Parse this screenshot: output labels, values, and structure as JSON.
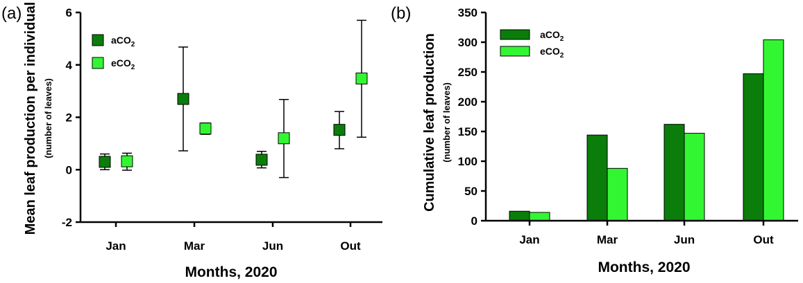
{
  "chart_data": [
    {
      "type": "scatter",
      "panel_label": "(a)",
      "xlabel": "Months, 2020",
      "ylabel": "Mean leaf production per individual",
      "ylabel_unit": "(number of leaves)",
      "categories": [
        "Jan",
        "Mar",
        "Jun",
        "Out"
      ],
      "ylim": [
        -2,
        6
      ],
      "yticks": [
        "-2",
        "0",
        "2",
        "4",
        "6"
      ],
      "series": [
        {
          "name": "aCO",
          "sub": "2",
          "color": "#0b7d0b",
          "values": [
            0.3,
            2.7,
            0.38,
            1.52
          ],
          "err_low": [
            0.0,
            0.72,
            0.07,
            0.8
          ],
          "err_high": [
            0.6,
            4.68,
            0.7,
            2.22
          ]
        },
        {
          "name": "eCO",
          "sub": "2",
          "color": "#33f633",
          "values": [
            0.32,
            1.57,
            1.2,
            3.48
          ],
          "err_low": [
            -0.02,
            1.35,
            -0.3,
            1.24
          ],
          "err_high": [
            0.63,
            1.78,
            2.68,
            5.7
          ]
        }
      ]
    },
    {
      "type": "bar",
      "panel_label": "(b)",
      "xlabel": "Months, 2020",
      "ylabel": "Cumulative leaf production",
      "ylabel_unit": "(number of leaves)",
      "categories": [
        "Jan",
        "Mar",
        "Jun",
        "Out"
      ],
      "ylim": [
        0,
        350
      ],
      "yticks": [
        "0",
        "50",
        "100",
        "150",
        "200",
        "250",
        "300",
        "350"
      ],
      "series": [
        {
          "name": "aCO",
          "sub": "2",
          "color": "#0b7d0b",
          "values": [
            16,
            144,
            162,
            247
          ]
        },
        {
          "name": "eCO",
          "sub": "2",
          "color": "#33f633",
          "values": [
            14,
            88,
            147,
            304
          ]
        }
      ]
    }
  ]
}
